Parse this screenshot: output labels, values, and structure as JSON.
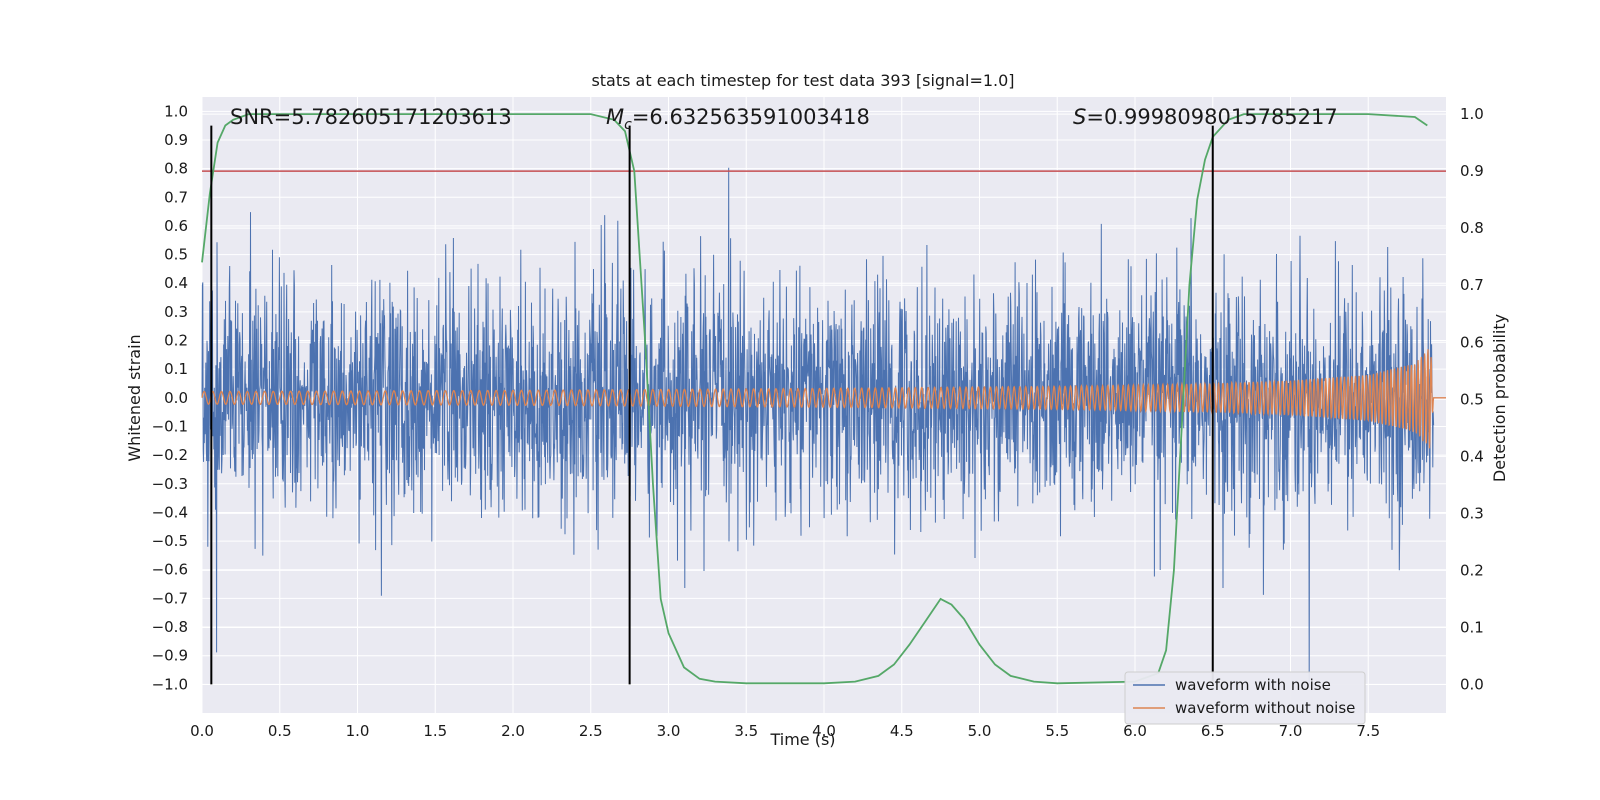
{
  "chart_data": {
    "type": "line",
    "title": "stats at each timestep for test data 393 [signal=1.0]",
    "xlabel": "Time (s)",
    "ylabel": "Whitened strain",
    "y2label": "Detection probability",
    "xlim": [
      0.0,
      8.0
    ],
    "ylim": [
      -1.1,
      1.05
    ],
    "y2lim": [
      -0.05,
      1.03
    ],
    "x_ticks": [
      "0.0",
      "0.5",
      "1.0",
      "1.5",
      "2.0",
      "2.5",
      "3.0",
      "3.5",
      "4.0",
      "4.5",
      "5.0",
      "5.5",
      "6.0",
      "6.5",
      "7.0",
      "7.5"
    ],
    "y_ticks": [
      "−1.0",
      "−0.9",
      "−0.8",
      "−0.7",
      "−0.6",
      "−0.5",
      "−0.4",
      "−0.3",
      "−0.2",
      "−0.1",
      "0.0",
      "0.1",
      "0.2",
      "0.3",
      "0.4",
      "0.5",
      "0.6",
      "0.7",
      "0.8",
      "0.9",
      "1.0"
    ],
    "y2_ticks": [
      "0.0",
      "0.1",
      "0.2",
      "0.3",
      "0.4",
      "0.5",
      "0.6",
      "0.7",
      "0.8",
      "0.9",
      "1.0"
    ],
    "annotations": {
      "snr": "SNR=5.782605171203613",
      "mc_symbol": "M",
      "mc_sub": "c",
      "mc_value": "=6.632563591003418",
      "s_symbol": "S",
      "s_value": "=0.9998098015785217"
    },
    "threshold": {
      "axis": "right",
      "value": 0.9,
      "color": "#c44e52"
    },
    "vertical_lines": [
      0.06,
      2.75,
      6.5
    ],
    "series": [
      {
        "name": "waveform with noise",
        "color": "#4c72b0",
        "axis": "left",
        "description_values": {
          "typical_range": [
            -0.45,
            0.5
          ],
          "max": 0.95,
          "min": -1.0
        }
      },
      {
        "name": "waveform without noise",
        "color": "#dd8452",
        "axis": "left",
        "amplitude_points": {
          "x": [
            0.0,
            2.0,
            4.0,
            5.5,
            6.5,
            7.0,
            7.5,
            7.8,
            7.9,
            7.92,
            8.0
          ],
          "y": [
            0.022,
            0.026,
            0.033,
            0.04,
            0.05,
            0.06,
            0.08,
            0.12,
            0.18,
            0.0,
            0.0
          ]
        }
      },
      {
        "name": "",
        "color": "#55a868",
        "axis": "right",
        "x": [
          0.0,
          0.05,
          0.1,
          0.15,
          0.2,
          0.3,
          0.5,
          1.0,
          2.0,
          2.5,
          2.65,
          2.72,
          2.78,
          2.85,
          2.9,
          2.95,
          3.0,
          3.1,
          3.2,
          3.3,
          3.5,
          4.0,
          4.2,
          4.35,
          4.45,
          4.55,
          4.65,
          4.75,
          4.82,
          4.9,
          5.0,
          5.1,
          5.2,
          5.35,
          5.5,
          6.0,
          6.15,
          6.2,
          6.25,
          6.3,
          6.35,
          6.4,
          6.45,
          6.5,
          6.6,
          6.7,
          6.8,
          7.0,
          7.5,
          7.8,
          7.88
        ],
        "y": [
          0.74,
          0.86,
          0.95,
          0.98,
          0.99,
          1.0,
          1.0,
          1.0,
          1.0,
          1.0,
          0.99,
          0.97,
          0.9,
          0.6,
          0.35,
          0.15,
          0.09,
          0.03,
          0.01,
          0.005,
          0.002,
          0.002,
          0.005,
          0.015,
          0.035,
          0.07,
          0.11,
          0.15,
          0.14,
          0.115,
          0.07,
          0.035,
          0.015,
          0.005,
          0.002,
          0.005,
          0.02,
          0.06,
          0.2,
          0.45,
          0.7,
          0.85,
          0.92,
          0.96,
          0.99,
          1.0,
          1.0,
          1.0,
          1.0,
          0.995,
          0.98
        ]
      }
    ],
    "legend": {
      "position": "lower-right",
      "entries": [
        "waveform with noise",
        "waveform without noise"
      ]
    },
    "colors": {
      "background": "#eaeaf2",
      "grid": "#ffffff",
      "vline": "#000000"
    }
  }
}
